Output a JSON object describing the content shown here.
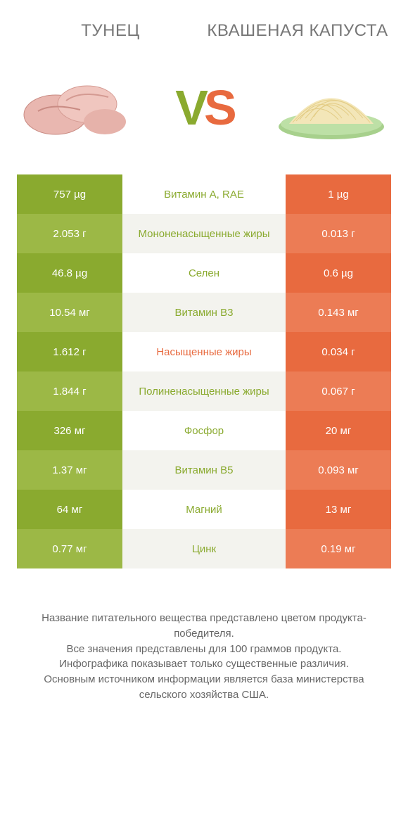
{
  "titles": {
    "left": "ТУНЕЦ",
    "right": "КВАШЕНАЯ КАПУСТА"
  },
  "vs": {
    "v": "V",
    "s": "S"
  },
  "colors": {
    "green_dark": "#8aaa2f",
    "green_light": "#9cb846",
    "orange_dark": "#e86a3f",
    "orange_light": "#ec7c55",
    "mid_text_green": "#8aaa2f",
    "mid_text_orange": "#e86a3f"
  },
  "rows": [
    {
      "left": "757 µg",
      "label": "Витамин A, RAE",
      "right": "1 µg",
      "winner": "left"
    },
    {
      "left": "2.053 г",
      "label": "Мононенасыщенные жиры",
      "right": "0.013 г",
      "winner": "left"
    },
    {
      "left": "46.8 µg",
      "label": "Селен",
      "right": "0.6 µg",
      "winner": "left"
    },
    {
      "left": "10.54 мг",
      "label": "Витамин B3",
      "right": "0.143 мг",
      "winner": "left"
    },
    {
      "left": "1.612 г",
      "label": "Насыщенные жиры",
      "right": "0.034 г",
      "winner": "right"
    },
    {
      "left": "1.844 г",
      "label": "Полиненасыщенные жиры",
      "right": "0.067 г",
      "winner": "left"
    },
    {
      "left": "326 мг",
      "label": "Фосфор",
      "right": "20 мг",
      "winner": "left"
    },
    {
      "left": "1.37 мг",
      "label": "Витамин B5",
      "right": "0.093 мг",
      "winner": "left"
    },
    {
      "left": "64 мг",
      "label": "Магний",
      "right": "13 мг",
      "winner": "left"
    },
    {
      "left": "0.77 мг",
      "label": "Цинк",
      "right": "0.19 мг",
      "winner": "left"
    }
  ],
  "footer": [
    "Название питательного вещества представлено цветом продукта-победителя.",
    "Все значения представлены для 100 граммов продукта.",
    "Инфографика показывает только существенные различия.",
    "Основным источником информации является база министерства сельского хозяйства США."
  ]
}
